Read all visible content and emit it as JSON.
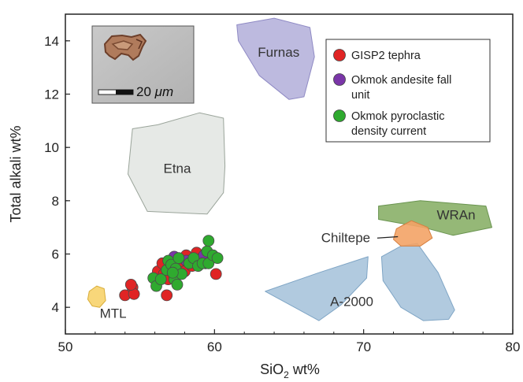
{
  "chart_data": {
    "type": "scatter",
    "xlabel": {
      "prefix": "SiO",
      "sub": "2",
      "suffix": " wt%"
    },
    "ylabel": "Total alkali wt%",
    "xlim": [
      50,
      80
    ],
    "ylim": [
      3,
      15
    ],
    "x_ticks": [
      50,
      60,
      70,
      80
    ],
    "y_ticks": [
      4,
      6,
      8,
      10,
      12,
      14
    ],
    "grid": false,
    "legend_position": "top-right",
    "series": [
      {
        "name": "GISP2 tephra",
        "color": "#e02424",
        "points": [
          [
            54.0,
            4.45
          ],
          [
            54.5,
            4.75
          ],
          [
            54.6,
            4.5
          ],
          [
            54.4,
            4.85
          ],
          [
            56.8,
            4.45
          ],
          [
            56.2,
            5.35
          ],
          [
            56.6,
            5.25
          ],
          [
            56.9,
            5.05
          ],
          [
            56.5,
            5.65
          ],
          [
            57.2,
            5.45
          ],
          [
            57.6,
            5.75
          ],
          [
            57.9,
            5.65
          ],
          [
            57.7,
            5.25
          ],
          [
            58.0,
            5.35
          ],
          [
            58.5,
            5.55
          ],
          [
            58.8,
            6.05
          ],
          [
            58.1,
            5.95
          ],
          [
            59.3,
            5.75
          ],
          [
            60.1,
            5.25
          ]
        ]
      },
      {
        "name": "Okmok andesite fall unit",
        "color": "#7a35a8",
        "points": [
          [
            57.3,
            5.9
          ],
          [
            58.1,
            5.75
          ],
          [
            59.0,
            5.8
          ],
          [
            59.4,
            5.65
          ],
          [
            59.3,
            5.95
          ]
        ]
      },
      {
        "name": "Okmok pyroclastic density current",
        "color": "#2faa2f",
        "points": [
          [
            55.9,
            5.1
          ],
          [
            56.1,
            4.8
          ],
          [
            56.4,
            5.05
          ],
          [
            56.8,
            5.4
          ],
          [
            56.9,
            5.75
          ],
          [
            57.1,
            5.6
          ],
          [
            57.3,
            5.05
          ],
          [
            57.5,
            4.85
          ],
          [
            57.4,
            5.45
          ],
          [
            57.8,
            5.25
          ],
          [
            57.6,
            5.85
          ],
          [
            58.3,
            5.65
          ],
          [
            58.6,
            5.85
          ],
          [
            58.9,
            5.55
          ],
          [
            59.2,
            5.65
          ],
          [
            59.5,
            6.1
          ],
          [
            59.6,
            5.65
          ],
          [
            59.9,
            5.95
          ],
          [
            60.2,
            5.85
          ],
          [
            59.6,
            6.5
          ],
          [
            57.2,
            5.3
          ]
        ]
      }
    ],
    "regions": [
      {
        "name": "Furnas",
        "fill": "#b6b2db",
        "stroke": "#8f8ac4",
        "polygon": [
          [
            61.5,
            14.6
          ],
          [
            64.0,
            14.85
          ],
          [
            66.4,
            14.5
          ],
          [
            66.7,
            13.4
          ],
          [
            66.0,
            11.9
          ],
          [
            65.0,
            11.8
          ],
          [
            63.0,
            12.7
          ],
          [
            61.6,
            14.0
          ]
        ],
        "label_at": [
          64.3,
          13.4
        ]
      },
      {
        "name": "Etna",
        "fill": "#e3e7e3",
        "stroke": "#9aa49a",
        "polygon": [
          [
            54.5,
            10.7
          ],
          [
            56.2,
            10.85
          ],
          [
            59.0,
            11.3
          ],
          [
            60.6,
            11.1
          ],
          [
            60.7,
            9.3
          ],
          [
            60.6,
            8.3
          ],
          [
            59.5,
            7.5
          ],
          [
            55.5,
            7.6
          ],
          [
            54.2,
            9.0
          ]
        ],
        "label_at": [
          57.5,
          9.05
        ]
      },
      {
        "name": "WRAn",
        "fill": "#8ab068",
        "stroke": "#6a9450",
        "polygon": [
          [
            71.0,
            7.8
          ],
          [
            73.8,
            8.0
          ],
          [
            78.2,
            7.8
          ],
          [
            78.6,
            7.0
          ],
          [
            76.0,
            6.7
          ],
          [
            74.0,
            7.0
          ],
          [
            71.0,
            7.3
          ]
        ],
        "label_at": [
          76.2,
          7.3
        ]
      },
      {
        "name": "A-2000 (left lobe)",
        "fill": "#a8c4dc",
        "stroke": "#7fa5c5",
        "polygon": [
          [
            63.4,
            4.6
          ],
          [
            67.0,
            5.3
          ],
          [
            70.3,
            5.9
          ],
          [
            70.2,
            5.1
          ],
          [
            68.5,
            4.1
          ],
          [
            67.0,
            3.5
          ]
        ]
      },
      {
        "name": "A-2000 (right lobe)",
        "fill": "#a8c4dc",
        "stroke": "#7fa5c5",
        "polygon": [
          [
            71.2,
            5.9
          ],
          [
            72.5,
            6.3
          ],
          [
            73.6,
            6.4
          ],
          [
            75.0,
            5.3
          ],
          [
            76.1,
            3.9
          ],
          [
            75.7,
            3.55
          ],
          [
            74.0,
            3.5
          ],
          [
            72.5,
            4.0
          ],
          [
            71.3,
            5.0
          ]
        ]
      },
      {
        "name": "Chiltepe",
        "fill": "#f3a366",
        "stroke": "#d67f3f",
        "polygon": [
          [
            72.2,
            6.95
          ],
          [
            73.2,
            7.25
          ],
          [
            74.3,
            7.0
          ],
          [
            74.6,
            6.6
          ],
          [
            73.8,
            6.3
          ],
          [
            72.5,
            6.3
          ],
          [
            72.0,
            6.55
          ]
        ]
      },
      {
        "name": "MTL",
        "fill": "#f7d36b",
        "stroke": "#d8ac37",
        "polygon": [
          [
            51.6,
            4.6
          ],
          [
            52.1,
            4.8
          ],
          [
            52.6,
            4.7
          ],
          [
            52.7,
            4.25
          ],
          [
            52.3,
            4.0
          ],
          [
            51.8,
            4.05
          ],
          [
            51.5,
            4.3
          ]
        ]
      }
    ],
    "annotations": [
      {
        "text": "A-2000",
        "at": [
          69.2,
          4.05
        ]
      },
      {
        "text": "MTL",
        "at": [
          53.2,
          3.6
        ]
      },
      {
        "text": "Chiltepe",
        "at": [
          68.8,
          6.45
        ],
        "leader_to": [
          72.3,
          6.65
        ]
      }
    ]
  },
  "inset": {
    "scale_label_num": "20",
    "scale_label_unit": "μm"
  }
}
